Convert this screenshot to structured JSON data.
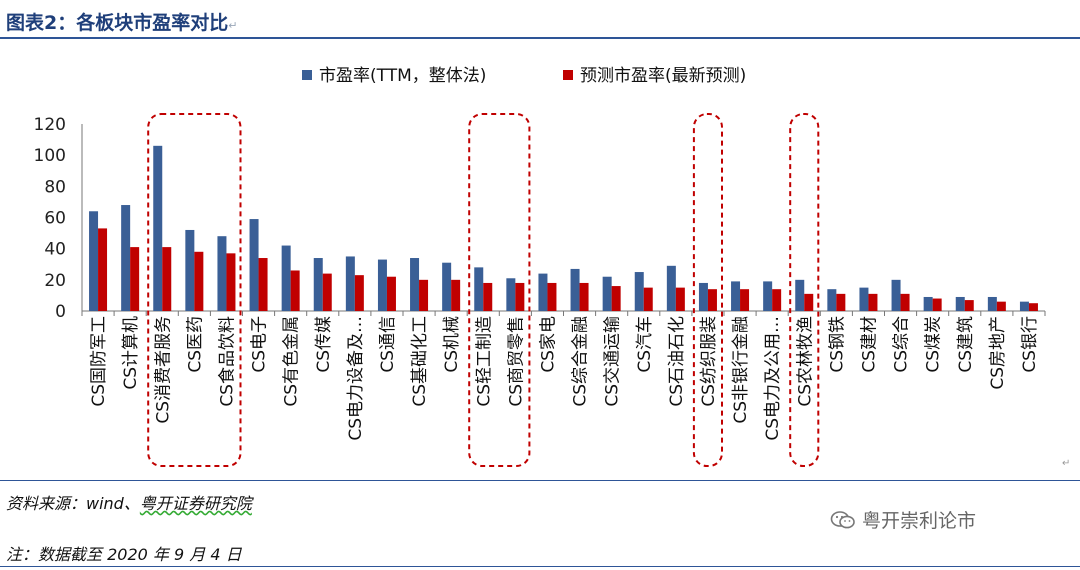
{
  "header": {
    "title": "图表2：各板块市盈率对比",
    "return_mark": "↵"
  },
  "footer": {
    "source_prefix": "资料来源：wind、",
    "source_brand": "粤开证券研究院",
    "note": "注：数据截至 2020 年 9 月 4 日",
    "watermark": "粤开崇利论市",
    "corner_mark": "↵"
  },
  "colors": {
    "series1": "#3a5f96",
    "series2": "#c00000",
    "highlight_box": "#c00000",
    "title": "#1f3f7a"
  },
  "chart_data": {
    "type": "bar",
    "title": "",
    "xlabel": "",
    "ylabel": "",
    "ylim": [
      0,
      120
    ],
    "yticks": [
      0,
      20,
      40,
      60,
      80,
      100,
      120
    ],
    "legend_position": "top",
    "grid": false,
    "categories": [
      "CS国防军工",
      "CS计算机",
      "CS消费者服务",
      "CS医药",
      "CS食品饮料",
      "CS电子",
      "CS有色金属",
      "CS传媒",
      "CS电力设备及…",
      "CS通信",
      "CS基础化工",
      "CS机械",
      "CS轻工制造",
      "CS商贸零售",
      "CS家电",
      "CS综合金融",
      "CS交通运输",
      "CS汽车",
      "CS石油石化",
      "CS纺织服装",
      "CS非银行金融",
      "CS电力及公用…",
      "CS农林牧渔",
      "CS钢铁",
      "CS建材",
      "CS综合",
      "CS煤炭",
      "CS建筑",
      "CS房地产",
      "CS银行"
    ],
    "series": [
      {
        "name": "市盈率(TTM，整体法)",
        "color": "#3a5f96",
        "values": [
          64,
          68,
          106,
          52,
          48,
          59,
          42,
          34,
          35,
          33,
          34,
          31,
          28,
          21,
          24,
          27,
          22,
          25,
          29,
          18,
          19,
          19,
          20,
          14,
          15,
          20,
          9,
          9,
          9,
          6
        ]
      },
      {
        "name": "预测市盈率(最新预测)",
        "color": "#c00000",
        "values": [
          53,
          41,
          41,
          38,
          37,
          34,
          26,
          24,
          23,
          22,
          20,
          20,
          18,
          18,
          18,
          18,
          16,
          15,
          15,
          14,
          14,
          14,
          11,
          11,
          11,
          11,
          8,
          7,
          6,
          5
        ]
      }
    ],
    "highlight_groups": [
      {
        "from": 2,
        "to": 4
      },
      {
        "from": 12,
        "to": 13
      },
      {
        "from": 19,
        "to": 19
      },
      {
        "from": 22,
        "to": 22
      }
    ]
  }
}
